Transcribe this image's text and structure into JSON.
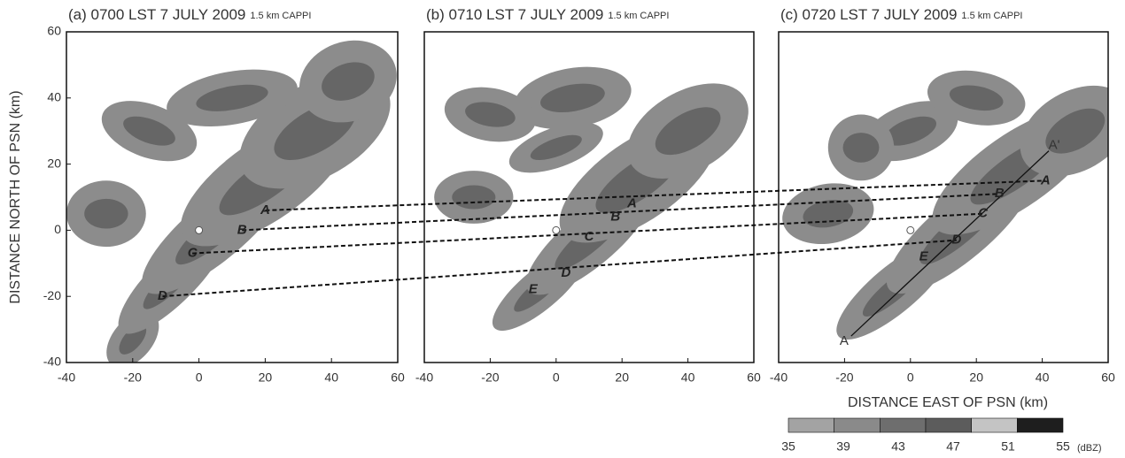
{
  "chart_data": [
    {
      "type": "contour",
      "title": "(a) 0700 LST 7 JULY 2009",
      "subtitle": "1.5 km CAPPI",
      "ylabel": "DISTANCE NORTH OF PSN (km)",
      "xlim": [
        -40,
        60
      ],
      "ylim": [
        -40,
        60
      ],
      "xticks": [
        -40,
        -20,
        0,
        20,
        40,
        60
      ],
      "yticks": [
        -40,
        -20,
        0,
        20,
        40,
        60
      ],
      "points": {
        "labels": [
          "A",
          "B",
          "C",
          "D"
        ],
        "x": [
          20,
          13,
          -2,
          -11
        ],
        "y": [
          6,
          0,
          -7,
          -20
        ]
      }
    },
    {
      "type": "contour",
      "title": "(b) 0710 LST 7 JULY 2009",
      "subtitle": "1.5 km CAPPI",
      "xlim": [
        -40,
        60
      ],
      "ylim": [
        -40,
        60
      ],
      "xticks": [
        -40,
        -20,
        0,
        20,
        40,
        60
      ],
      "points": {
        "labels": [
          "A",
          "B",
          "C",
          "D",
          "E"
        ],
        "x": [
          23,
          18,
          10,
          3,
          -7
        ],
        "y": [
          8,
          4,
          -2,
          -13,
          -18
        ]
      }
    },
    {
      "type": "contour",
      "title": "(c) 0720 LST 7 JULY 2009",
      "subtitle": "1.5 km CAPPI",
      "xlabel": "DISTANCE EAST OF PSN (km)",
      "xlim": [
        -40,
        60
      ],
      "ylim": [
        -40,
        60
      ],
      "xticks": [
        -40,
        -20,
        0,
        20,
        40,
        60
      ],
      "points": {
        "labels": [
          "A",
          "B",
          "C",
          "D",
          "E"
        ],
        "x": [
          41,
          27,
          22,
          14,
          4
        ],
        "y": [
          15,
          11,
          5,
          -3,
          -8
        ]
      },
      "section": {
        "labels": [
          "A",
          "A'"
        ],
        "x": [
          -18,
          42
        ],
        "y": [
          -32,
          24
        ]
      }
    }
  ],
  "colorbar": {
    "levels": [
      35,
      39,
      43,
      47,
      51,
      55
    ],
    "unit": "(dBZ)",
    "colors": [
      "#a3a3a3",
      "#8a8a8a",
      "#6e6e6e",
      "#5c5c5c",
      "#c4c4c4",
      "#1e1e1e"
    ]
  }
}
